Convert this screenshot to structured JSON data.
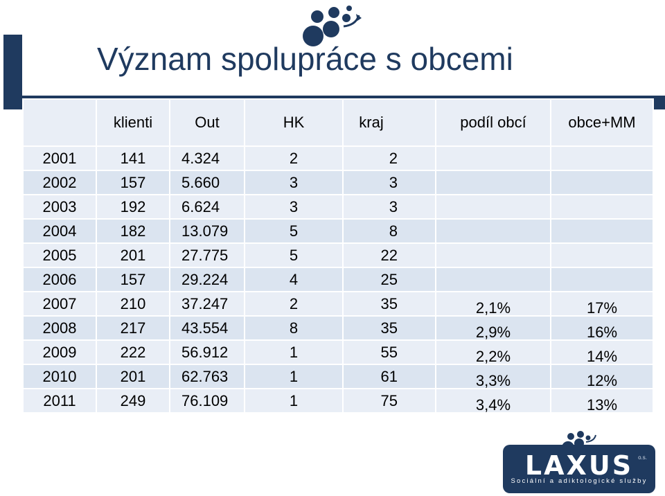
{
  "slide": {
    "title": "Význam spolupráce s obcemi"
  },
  "table": {
    "headers": [
      "",
      "klienti",
      "Out",
      "HK",
      "kraj",
      "podíl obcí",
      "obce+MM"
    ],
    "rows": [
      [
        "2001",
        "141",
        "4.324",
        "2",
        "2",
        "",
        ""
      ],
      [
        "2002",
        "157",
        "5.660",
        "3",
        "3",
        "",
        ""
      ],
      [
        "2003",
        "192",
        "6.624",
        "3",
        "3",
        "",
        ""
      ],
      [
        "2004",
        "182",
        "13.079",
        "5",
        "8",
        "",
        ""
      ],
      [
        "2005",
        "201",
        "27.775",
        "5",
        "22",
        "",
        ""
      ],
      [
        "2006",
        "157",
        "29.224",
        "4",
        "25",
        "",
        ""
      ],
      [
        "2007",
        "210",
        "37.247",
        "2",
        "35",
        "2,1%",
        "17%"
      ],
      [
        "2008",
        "217",
        "43.554",
        "8",
        "35",
        "2,9%",
        "16%"
      ],
      [
        "2009",
        "222",
        "56.912",
        "1",
        "55",
        "2,2%",
        "14%"
      ],
      [
        "2010",
        "201",
        "62.763",
        "1",
        "61",
        "3,3%",
        "12%"
      ],
      [
        "2011",
        "249",
        "76.109",
        "1",
        "75",
        "3,4%",
        "13%"
      ]
    ]
  },
  "logo": {
    "brand": "LAXUS",
    "suffix": "o.s.",
    "tagline": "Sociální a adiktologické služby"
  },
  "colors": {
    "navy": "#1f3a5f",
    "row_light": "#e9eef6",
    "row_dark": "#dbe4f0"
  }
}
